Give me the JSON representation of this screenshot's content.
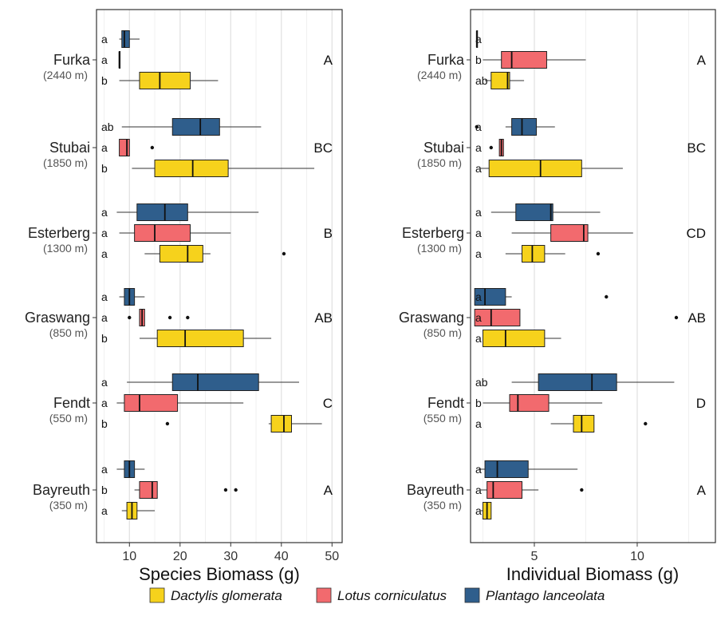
{
  "chart_data": [
    {
      "type": "boxplot",
      "xlabel": "Species Biomass (g)",
      "xlim": [
        3.5,
        52
      ],
      "xticks": [
        10,
        20,
        30,
        40,
        50
      ],
      "categories": [
        {
          "name": "Furka",
          "elevation": "(2440 m)",
          "group": "A"
        },
        {
          "name": "Stubai",
          "elevation": "(1850 m)",
          "group": "BC"
        },
        {
          "name": "Esterberg",
          "elevation": "(1300 m)",
          "group": "B"
        },
        {
          "name": "Graswang",
          "elevation": "(850 m)",
          "group": "AB"
        },
        {
          "name": "Fendt",
          "elevation": "(550 m)",
          "group": "C"
        },
        {
          "name": "Bayreuth",
          "elevation": "(350 m)",
          "group": "A"
        }
      ],
      "series": [
        {
          "name": "Plantago lanceolata",
          "color": "#2f5e8c",
          "values": [
            {
              "site": "Furka",
              "sig": "a",
              "whislo": 8,
              "q1": 8.5,
              "med": 9,
              "q3": 10,
              "whishi": 12,
              "outliers": []
            },
            {
              "site": "Stubai",
              "sig": "ab",
              "whislo": 8.5,
              "q1": 18.5,
              "med": 24,
              "q3": 27.8,
              "whishi": 36,
              "outliers": []
            },
            {
              "site": "Esterberg",
              "sig": "a",
              "whislo": 7.5,
              "q1": 11.5,
              "med": 17,
              "q3": 21.5,
              "whishi": 35.5,
              "outliers": []
            },
            {
              "site": "Graswang",
              "sig": "a",
              "whislo": 8,
              "q1": 9,
              "med": 10,
              "q3": 11,
              "whishi": 13,
              "outliers": []
            },
            {
              "site": "Fendt",
              "sig": "a",
              "whislo": 9.5,
              "q1": 18.5,
              "med": 23.5,
              "q3": 35.5,
              "whishi": 43.5,
              "outliers": []
            },
            {
              "site": "Bayreuth",
              "sig": "a",
              "whislo": 7.5,
              "q1": 9,
              "med": 10,
              "q3": 11,
              "whishi": 13,
              "outliers": []
            }
          ]
        },
        {
          "name": "Lotus corniculatus",
          "color": "#f26a6e",
          "values": [
            {
              "site": "Furka",
              "sig": "a",
              "whislo": 8,
              "q1": 8,
              "med": 8,
              "q3": 8,
              "whishi": 8,
              "outliers": []
            },
            {
              "site": "Stubai",
              "sig": "a",
              "whislo": 8,
              "q1": 8,
              "med": 9.5,
              "q3": 10,
              "whishi": 10,
              "outliers": [
                14.5
              ]
            },
            {
              "site": "Esterberg",
              "sig": "a",
              "whislo": 8,
              "q1": 11,
              "med": 15,
              "q3": 22,
              "whishi": 30,
              "outliers": []
            },
            {
              "site": "Graswang",
              "sig": "a",
              "whislo": 12,
              "q1": 12,
              "med": 12.5,
              "q3": 13,
              "whishi": 13,
              "outliers": [
                10,
                18,
                21.5
              ]
            },
            {
              "site": "Fendt",
              "sig": "a",
              "whislo": 7.5,
              "q1": 9,
              "med": 12,
              "q3": 19.5,
              "whishi": 32.5,
              "outliers": []
            },
            {
              "site": "Bayreuth",
              "sig": "b",
              "whislo": 11,
              "q1": 12,
              "med": 14.5,
              "q3": 15.5,
              "whishi": 15.5,
              "outliers": [
                29,
                31
              ]
            }
          ]
        },
        {
          "name": "Dactylis glomerata",
          "color": "#f6d21c",
          "values": [
            {
              "site": "Furka",
              "sig": "b",
              "whislo": 8,
              "q1": 12,
              "med": 16,
              "q3": 22,
              "whishi": 27.5,
              "outliers": []
            },
            {
              "site": "Stubai",
              "sig": "b",
              "whislo": 10.5,
              "q1": 15,
              "med": 22.5,
              "q3": 29.5,
              "whishi": 46.5,
              "outliers": []
            },
            {
              "site": "Esterberg",
              "sig": "a",
              "whislo": 13,
              "q1": 16,
              "med": 21.5,
              "q3": 24.5,
              "whishi": 26,
              "outliers": [
                40.5
              ]
            },
            {
              "site": "Graswang",
              "sig": "b",
              "whislo": 12,
              "q1": 15.5,
              "med": 21,
              "q3": 32.5,
              "whishi": 38,
              "outliers": []
            },
            {
              "site": "Fendt",
              "sig": "b",
              "whislo": 37.5,
              "q1": 38,
              "med": 40.5,
              "q3": 42,
              "whishi": 48,
              "outliers": [
                17.5
              ]
            },
            {
              "site": "Bayreuth",
              "sig": "a",
              "whislo": 8.5,
              "q1": 9.5,
              "med": 10.5,
              "q3": 11.5,
              "whishi": 15,
              "outliers": []
            }
          ]
        }
      ]
    },
    {
      "type": "boxplot",
      "xlabel": "Individual Biomass (g)",
      "xlim": [
        1.9,
        13.8
      ],
      "xticks": [
        5,
        10
      ],
      "categories": [
        {
          "name": "Furka",
          "elevation": "(2440 m)",
          "group": "A"
        },
        {
          "name": "Stubai",
          "elevation": "(1850 m)",
          "group": "BC"
        },
        {
          "name": "Esterberg",
          "elevation": "(1300 m)",
          "group": "CD"
        },
        {
          "name": "Graswang",
          "elevation": "(850 m)",
          "group": "AB"
        },
        {
          "name": "Fendt",
          "elevation": "(550 m)",
          "group": "D"
        },
        {
          "name": "Bayreuth",
          "elevation": "(350 m)",
          "group": "A"
        }
      ],
      "series": [
        {
          "name": "Plantago lanceolata",
          "color": "#2f5e8c",
          "values": [
            {
              "site": "Furka",
              "sig": "a",
              "whislo": 2.2,
              "q1": 2.2,
              "med": 2.2,
              "q3": 2.2,
              "whishi": 2.2,
              "outliers": []
            },
            {
              "site": "Stubai",
              "sig": "a",
              "whislo": 3.6,
              "q1": 3.9,
              "med": 4.4,
              "q3": 5.1,
              "whishi": 6,
              "outliers": [
                2.2
              ]
            },
            {
              "site": "Esterberg",
              "sig": "a",
              "whislo": 2.9,
              "q1": 4.1,
              "med": 5.8,
              "q3": 5.9,
              "whishi": 8.2,
              "outliers": []
            },
            {
              "site": "Graswang",
              "sig": "a",
              "whislo": 2.1,
              "q1": 2.1,
              "med": 2.6,
              "q3": 3.6,
              "whishi": 3.9,
              "outliers": [
                8.5
              ]
            },
            {
              "site": "Fendt",
              "sig": "ab",
              "whislo": 3.9,
              "q1": 5.2,
              "med": 7.8,
              "q3": 9,
              "whishi": 11.8,
              "outliers": []
            },
            {
              "site": "Bayreuth",
              "sig": "a",
              "whislo": 2.3,
              "q1": 2.6,
              "med": 3.2,
              "q3": 4.7,
              "whishi": 7.1,
              "outliers": []
            }
          ]
        },
        {
          "name": "Lotus corniculatus",
          "color": "#f26a6e",
          "values": [
            {
              "site": "Furka",
              "sig": "b",
              "whislo": 2.5,
              "q1": 3.4,
              "med": 3.9,
              "q3": 5.6,
              "whishi": 7.5,
              "outliers": []
            },
            {
              "site": "Stubai",
              "sig": "a",
              "whislo": 3.3,
              "q1": 3.3,
              "med": 3.4,
              "q3": 3.5,
              "whishi": 3.5,
              "outliers": [
                2.9
              ]
            },
            {
              "site": "Esterberg",
              "sig": "a",
              "whislo": 3.9,
              "q1": 5.8,
              "med": 7.4,
              "q3": 7.6,
              "whishi": 9.8,
              "outliers": []
            },
            {
              "site": "Graswang",
              "sig": "a",
              "whislo": 2.1,
              "q1": 2.1,
              "med": 2.9,
              "q3": 4.3,
              "whishi": 4.3,
              "outliers": [
                11.9
              ]
            },
            {
              "site": "Fendt",
              "sig": "b",
              "whislo": 2.5,
              "q1": 3.8,
              "med": 4.2,
              "q3": 5.7,
              "whishi": 8.3,
              "outliers": []
            },
            {
              "site": "Bayreuth",
              "sig": "a",
              "whislo": 2.4,
              "q1": 2.7,
              "med": 3,
              "q3": 4.4,
              "whishi": 5.2,
              "outliers": [
                7.3
              ]
            }
          ]
        },
        {
          "name": "Dactylis glomerata",
          "color": "#f6d21c",
          "values": [
            {
              "site": "Furka",
              "sig": "ab",
              "whislo": 2.6,
              "q1": 2.9,
              "med": 3.7,
              "q3": 3.8,
              "whishi": 4.5,
              "outliers": []
            },
            {
              "site": "Stubai",
              "sig": "a",
              "whislo": 2.4,
              "q1": 2.8,
              "med": 5.3,
              "q3": 7.3,
              "whishi": 9.3,
              "outliers": []
            },
            {
              "site": "Esterberg",
              "sig": "a",
              "whislo": 3.6,
              "q1": 4.4,
              "med": 4.9,
              "q3": 5.5,
              "whishi": 6.5,
              "outliers": [
                8.1
              ]
            },
            {
              "site": "Graswang",
              "sig": "a",
              "whislo": 2.5,
              "q1": 2.5,
              "med": 3.6,
              "q3": 5.5,
              "whishi": 6.3,
              "outliers": []
            },
            {
              "site": "Fendt",
              "sig": "a",
              "whislo": 5.8,
              "q1": 6.9,
              "med": 7.3,
              "q3": 7.9,
              "whishi": 7.9,
              "outliers": [
                10.4
              ]
            },
            {
              "site": "Bayreuth",
              "sig": "a",
              "whislo": 2.4,
              "q1": 2.5,
              "med": 2.7,
              "q3": 2.9,
              "whishi": 2.9,
              "outliers": []
            }
          ]
        }
      ]
    }
  ],
  "legend": [
    {
      "label": "Dactylis glomerata",
      "color": "#f6d21c"
    },
    {
      "label": "Lotus corniculatus",
      "color": "#f26a6e"
    },
    {
      "label": "Plantago lanceolata",
      "color": "#2f5e8c"
    }
  ]
}
